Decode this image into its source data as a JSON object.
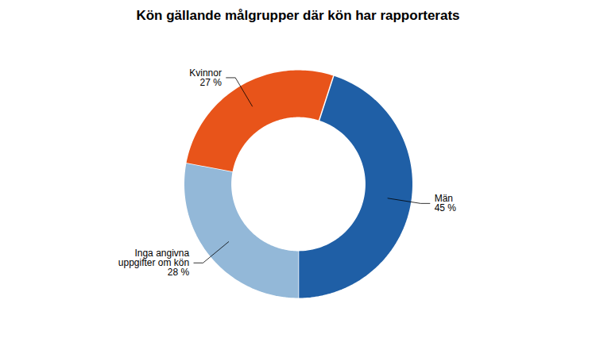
{
  "chart_data": {
    "type": "donut",
    "title": "Kön gällande målgrupper där kön har rapporterats",
    "categories": [
      "Män",
      "Inga angivna\nuppgifter om kön",
      "Kvinnor"
    ],
    "values": [
      45,
      28,
      27
    ],
    "value_labels": [
      "45 %",
      "28 %",
      "27 %"
    ],
    "colors": [
      "#1F5FA6",
      "#93B8D8",
      "#E8541A"
    ],
    "data_labels": true
  }
}
